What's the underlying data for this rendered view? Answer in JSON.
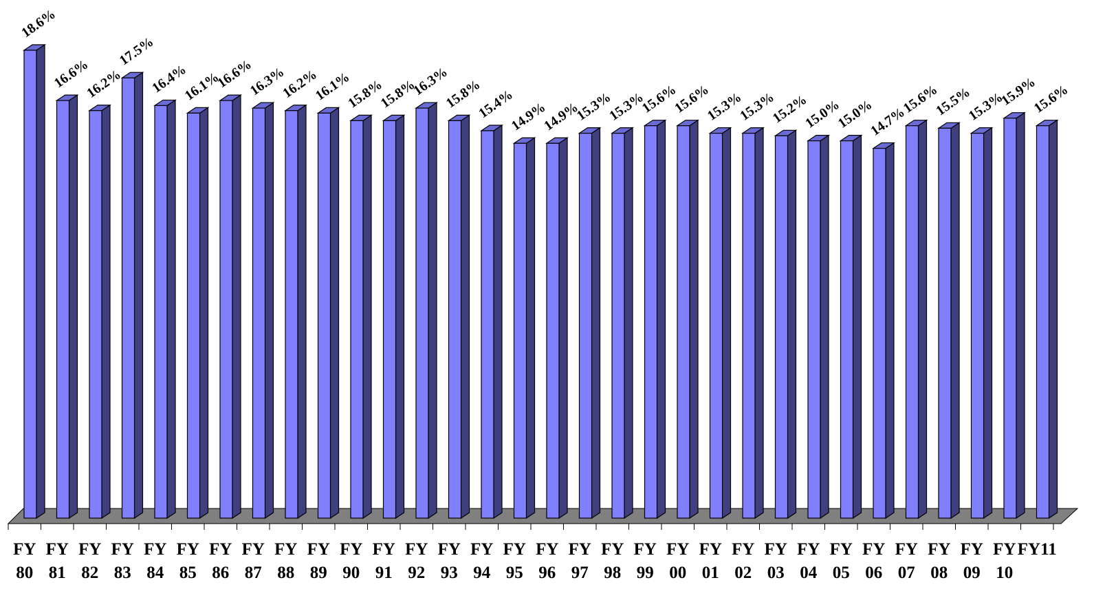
{
  "chart_data": {
    "type": "bar",
    "title": "",
    "xlabel": "",
    "ylabel": "",
    "categories": [
      [
        "FY",
        "80"
      ],
      [
        "FY",
        "81"
      ],
      [
        "FY",
        "82"
      ],
      [
        "FY",
        "83"
      ],
      [
        "FY",
        "84"
      ],
      [
        "FY",
        "85"
      ],
      [
        "FY",
        "86"
      ],
      [
        "FY",
        "87"
      ],
      [
        "FY",
        "88"
      ],
      [
        "FY",
        "89"
      ],
      [
        "FY",
        "90"
      ],
      [
        "FY",
        "91"
      ],
      [
        "FY",
        "92"
      ],
      [
        "FY",
        "93"
      ],
      [
        "FY",
        "94"
      ],
      [
        "FY",
        "95"
      ],
      [
        "FY",
        "96"
      ],
      [
        "FY",
        "97"
      ],
      [
        "FY",
        "98"
      ],
      [
        "FY",
        "99"
      ],
      [
        "FY",
        "00"
      ],
      [
        "FY",
        "01"
      ],
      [
        "FY",
        "02"
      ],
      [
        "FY",
        "03"
      ],
      [
        "FY",
        "04"
      ],
      [
        "FY",
        "05"
      ],
      [
        "FY",
        "06"
      ],
      [
        "FY",
        "07"
      ],
      [
        "FY",
        "08"
      ],
      [
        "FY",
        "09"
      ],
      [
        "FY",
        "10"
      ],
      [
        "FY11",
        ""
      ]
    ],
    "values": [
      18.6,
      16.6,
      16.2,
      17.5,
      16.4,
      16.1,
      16.6,
      16.3,
      16.2,
      16.1,
      15.8,
      15.8,
      16.3,
      15.8,
      15.4,
      14.9,
      14.9,
      15.3,
      15.3,
      15.6,
      15.6,
      15.3,
      15.3,
      15.2,
      15.0,
      15.0,
      14.7,
      15.6,
      15.5,
      15.3,
      15.9,
      15.6
    ],
    "value_labels": [
      "18.6%",
      "16.6%",
      "16.2%",
      "17.5%",
      "16.4%",
      "16.1%",
      "16.6%",
      "16.3%",
      "16.2%",
      "16.1%",
      "15.8%",
      "15.8%",
      "16.3%",
      "15.8%",
      "15.4%",
      "14.9%",
      "14.9%",
      "15.3%",
      "15.3%",
      "15.6%",
      "15.6%",
      "15.3%",
      "15.3%",
      "15.2%",
      "15.0%",
      "15.0%",
      "14.7%",
      "15.6%",
      "15.5%",
      "15.3%",
      "15.9%",
      "15.6%"
    ],
    "ylim": [
      0,
      18.6
    ],
    "grid": false,
    "legend": "none",
    "colors": {
      "bar_front": "#8080ff",
      "bar_side": "#40407f",
      "bar_top": "#6b6bd6",
      "floor": "#808080",
      "outline": "#000000"
    }
  }
}
